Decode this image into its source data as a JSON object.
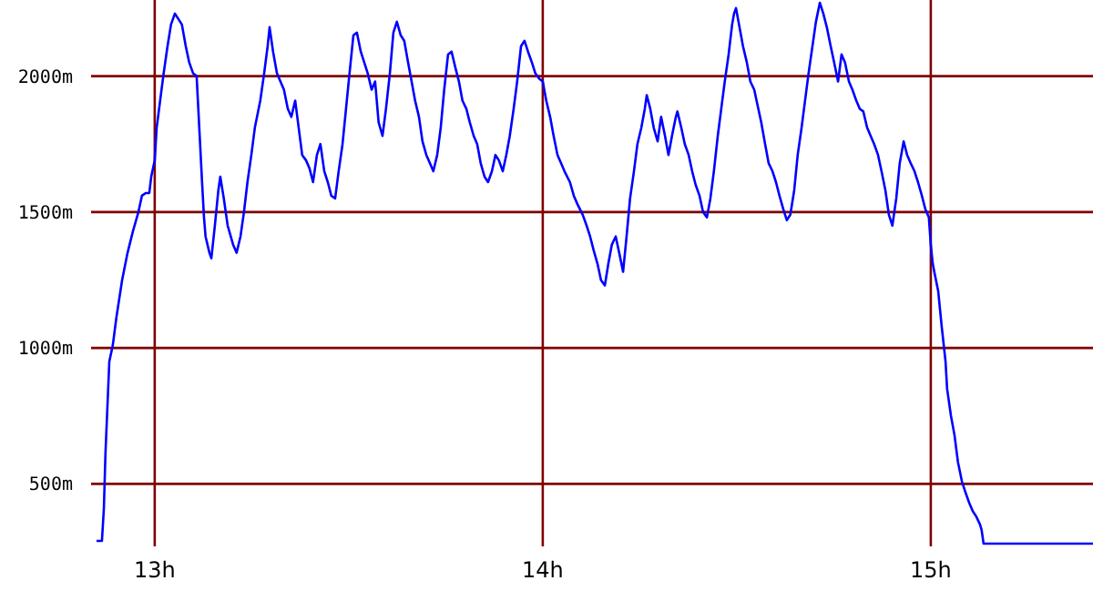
{
  "chart_data": {
    "type": "line",
    "xlim": [
      12.836,
      15.418
    ],
    "ylim": [
      270,
      2280
    ],
    "xticks": [
      {
        "value": 13,
        "label": "13h"
      },
      {
        "value": 14,
        "label": "14h"
      },
      {
        "value": 15,
        "label": "15h"
      }
    ],
    "yticks": [
      {
        "value": 500,
        "label": "500m"
      },
      {
        "value": 1000,
        "label": "1000m"
      },
      {
        "value": 1500,
        "label": "1500m"
      },
      {
        "value": 2000,
        "label": "2000m"
      }
    ],
    "grid": true,
    "marker": "none",
    "line_style": "solid",
    "series": [
      {
        "color": "#0000ff",
        "x": [
          12.85,
          12.864,
          12.869,
          12.873,
          12.883,
          12.892,
          12.901,
          12.916,
          12.93,
          12.944,
          12.958,
          12.967,
          12.977,
          12.986,
          12.991,
          13.0,
          13.005,
          13.014,
          13.023,
          13.033,
          13.042,
          13.052,
          13.061,
          13.07,
          13.08,
          13.089,
          13.099,
          13.108,
          13.117,
          13.122,
          13.127,
          13.131,
          13.141,
          13.146,
          13.155,
          13.164,
          13.169,
          13.178,
          13.188,
          13.202,
          13.211,
          13.221,
          13.23,
          13.239,
          13.249,
          13.258,
          13.272,
          13.282,
          13.291,
          13.296,
          13.305,
          13.315,
          13.324,
          13.333,
          13.343,
          13.352,
          13.362,
          13.371,
          13.38,
          13.39,
          13.399,
          13.408,
          13.418,
          13.427,
          13.437,
          13.446,
          13.455,
          13.465,
          13.474,
          13.484,
          13.493,
          13.502,
          13.512,
          13.521,
          13.531,
          13.54,
          13.549,
          13.559,
          13.568,
          13.577,
          13.587,
          13.596,
          13.606,
          13.615,
          13.624,
          13.634,
          13.643,
          13.653,
          13.662,
          13.671,
          13.681,
          13.69,
          13.7,
          13.709,
          13.718,
          13.728,
          13.737,
          13.746,
          13.756,
          13.765,
          13.775,
          13.784,
          13.793,
          13.803,
          13.812,
          13.822,
          13.831,
          13.84,
          13.85,
          13.859,
          13.869,
          13.878,
          13.887,
          13.897,
          13.906,
          13.915,
          13.925,
          13.934,
          13.944,
          13.953,
          13.962,
          13.972,
          13.981,
          13.991,
          14.0,
          14.009,
          14.019,
          14.028,
          14.038,
          14.047,
          14.056,
          14.07,
          14.08,
          14.089,
          14.103,
          14.113,
          14.122,
          14.131,
          14.141,
          14.15,
          14.16,
          14.169,
          14.178,
          14.188,
          14.197,
          14.207,
          14.216,
          14.225,
          14.235,
          14.244,
          14.254,
          14.263,
          14.268,
          14.277,
          14.286,
          14.296,
          14.305,
          14.315,
          14.324,
          14.333,
          14.343,
          14.347,
          14.357,
          14.366,
          14.376,
          14.385,
          14.394,
          14.404,
          14.413,
          14.423,
          14.432,
          14.441,
          14.451,
          14.46,
          14.469,
          14.479,
          14.488,
          14.493,
          14.498,
          14.507,
          14.516,
          14.526,
          14.535,
          14.545,
          14.554,
          14.563,
          14.573,
          14.582,
          14.592,
          14.601,
          14.61,
          14.62,
          14.629,
          14.638,
          14.648,
          14.657,
          14.667,
          14.676,
          14.685,
          14.695,
          14.704,
          14.714,
          14.723,
          14.732,
          14.742,
          14.751,
          14.761,
          14.77,
          14.779,
          14.789,
          14.798,
          14.808,
          14.817,
          14.826,
          14.836,
          14.845,
          14.854,
          14.864,
          14.873,
          14.883,
          14.892,
          14.901,
          14.911,
          14.92,
          14.93,
          14.939,
          14.948,
          14.958,
          14.967,
          14.977,
          14.986,
          14.995,
          15.0,
          15.005,
          15.009,
          15.019,
          15.028,
          15.038,
          15.042,
          15.052,
          15.061,
          15.07,
          15.08,
          15.089,
          15.099,
          15.108,
          15.117,
          15.127,
          15.131,
          15.136,
          15.418
        ],
        "values": [
          290,
          290,
          410,
          610,
          950,
          1010,
          1110,
          1250,
          1350,
          1430,
          1500,
          1560,
          1570,
          1570,
          1630,
          1690,
          1810,
          1910,
          2010,
          2110,
          2190,
          2230,
          2210,
          2190,
          2110,
          2050,
          2010,
          2000,
          1750,
          1610,
          1480,
          1410,
          1350,
          1330,
          1450,
          1580,
          1630,
          1550,
          1450,
          1380,
          1350,
          1410,
          1500,
          1610,
          1710,
          1810,
          1910,
          2010,
          2110,
          2180,
          2090,
          2010,
          1980,
          1950,
          1880,
          1850,
          1910,
          1810,
          1710,
          1690,
          1660,
          1610,
          1710,
          1750,
          1650,
          1610,
          1560,
          1550,
          1650,
          1750,
          1880,
          2010,
          2150,
          2160,
          2090,
          2050,
          2010,
          1950,
          1980,
          1830,
          1780,
          1880,
          2010,
          2160,
          2200,
          2150,
          2130,
          2050,
          1980,
          1910,
          1850,
          1760,
          1710,
          1680,
          1650,
          1710,
          1810,
          1950,
          2080,
          2090,
          2030,
          1980,
          1910,
          1880,
          1830,
          1780,
          1750,
          1680,
          1630,
          1610,
          1650,
          1710,
          1690,
          1650,
          1710,
          1780,
          1880,
          1980,
          2110,
          2130,
          2090,
          2050,
          2010,
          1990,
          1980,
          1910,
          1850,
          1780,
          1710,
          1680,
          1650,
          1610,
          1560,
          1530,
          1490,
          1450,
          1410,
          1360,
          1310,
          1250,
          1230,
          1310,
          1380,
          1410,
          1350,
          1280,
          1410,
          1550,
          1650,
          1750,
          1810,
          1880,
          1930,
          1880,
          1810,
          1760,
          1850,
          1780,
          1710,
          1780,
          1850,
          1870,
          1810,
          1750,
          1710,
          1650,
          1600,
          1560,
          1500,
          1480,
          1550,
          1650,
          1780,
          1880,
          1980,
          2080,
          2190,
          2230,
          2250,
          2180,
          2110,
          2050,
          1980,
          1950,
          1890,
          1830,
          1750,
          1680,
          1650,
          1610,
          1560,
          1510,
          1470,
          1490,
          1580,
          1710,
          1810,
          1910,
          2010,
          2110,
          2200,
          2270,
          2230,
          2180,
          2110,
          2050,
          1980,
          2080,
          2050,
          1980,
          1950,
          1910,
          1880,
          1870,
          1810,
          1780,
          1750,
          1710,
          1650,
          1580,
          1490,
          1450,
          1550,
          1680,
          1760,
          1710,
          1680,
          1650,
          1610,
          1560,
          1510,
          1480,
          1380,
          1310,
          1280,
          1210,
          1080,
          950,
          850,
          750,
          680,
          580,
          510,
          470,
          430,
          400,
          380,
          350,
          330,
          280,
          280
        ]
      }
    ]
  }
}
